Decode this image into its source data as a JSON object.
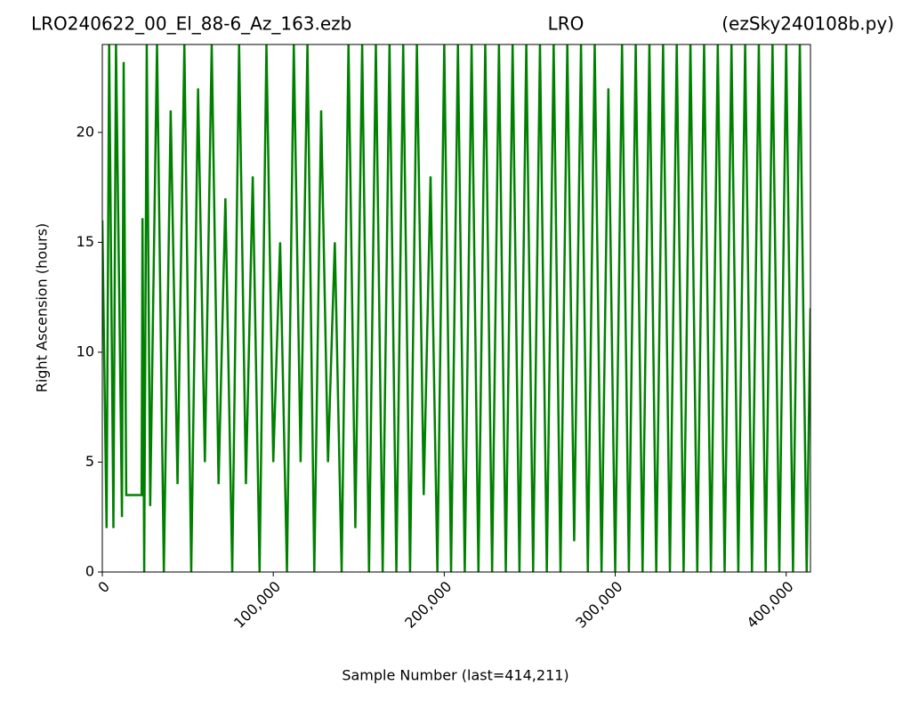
{
  "chart_data": {
    "type": "line",
    "title_left": "LRO240622_00_El_88-6_Az_163.ezb",
    "title_center": "LRO",
    "title_right": "(ezSky240108b.py)",
    "x_label": "Sample Number (last=414,211)",
    "y_label": "Right Ascension (hours)",
    "xlim": [
      0,
      414211
    ],
    "ylim": [
      0,
      24
    ],
    "xticks": [
      0,
      {
        "value": 100000,
        "label": "100,000"
      },
      {
        "value": 200000,
        "label": "200,000"
      },
      {
        "value": 300000,
        "label": "300,000"
      },
      {
        "value": 400000,
        "label": "400,000"
      }
    ],
    "yticks": [
      0,
      5,
      10,
      15,
      20
    ],
    "x": [
      0,
      2500,
      4000,
      6500,
      8000,
      10000,
      11500,
      12500,
      14000,
      23000,
      23500,
      24500,
      26000,
      28000,
      32000,
      36000,
      40000,
      44000,
      48000,
      52000,
      56000,
      60000,
      64000,
      68000,
      72000,
      76000,
      80000,
      84000,
      88000,
      92000,
      96000,
      100000,
      104000,
      108000,
      112000,
      116000,
      120000,
      124000,
      128000,
      132000,
      136000,
      140000,
      144000,
      148000,
      152000,
      156000,
      160000,
      164000,
      168000,
      172000,
      176000,
      180000,
      184000,
      188000,
      192000,
      196000,
      200000,
      204000,
      208000,
      212000,
      216000,
      220000,
      224000,
      228000,
      232000,
      236000,
      240000,
      244000,
      248000,
      252000,
      256000,
      260000,
      264000,
      268000,
      272000,
      276000,
      280000,
      284000,
      288000,
      292000,
      296000,
      300000,
      304000,
      308000,
      312000,
      316000,
      320000,
      324000,
      328000,
      332000,
      336000,
      340000,
      344000,
      348000,
      352000,
      356000,
      360000,
      364000,
      368000,
      372000,
      376000,
      380000,
      384000,
      388000,
      392000,
      396000,
      400000,
      404000,
      408000,
      412000,
      414211
    ],
    "series": [
      {
        "color": "#008000",
        "values": [
          16,
          2,
          24,
          2,
          24,
          12,
          2.5,
          23.2,
          3.5,
          3.5,
          16.1,
          0,
          24,
          3,
          24,
          0,
          21,
          4,
          24,
          0,
          22,
          5,
          24,
          4,
          17,
          0,
          24,
          4,
          18,
          0,
          24,
          5,
          15,
          0,
          24,
          5,
          24,
          0,
          21,
          5,
          15,
          0,
          24,
          2,
          24,
          0,
          24,
          0,
          24,
          0,
          24,
          0,
          24,
          3.5,
          18,
          0,
          24,
          0,
          24,
          0,
          24,
          0,
          24,
          0,
          24,
          0,
          24,
          0,
          24,
          0,
          24,
          0,
          24,
          0,
          24,
          1.4,
          24,
          0,
          24,
          0,
          22,
          0,
          24,
          0,
          24,
          0,
          24,
          0,
          24,
          0,
          24,
          0,
          24,
          0,
          24,
          0,
          24,
          0,
          24,
          0,
          24,
          0,
          24,
          0,
          24,
          0,
          24,
          0,
          24,
          0,
          12
        ]
      }
    ]
  }
}
